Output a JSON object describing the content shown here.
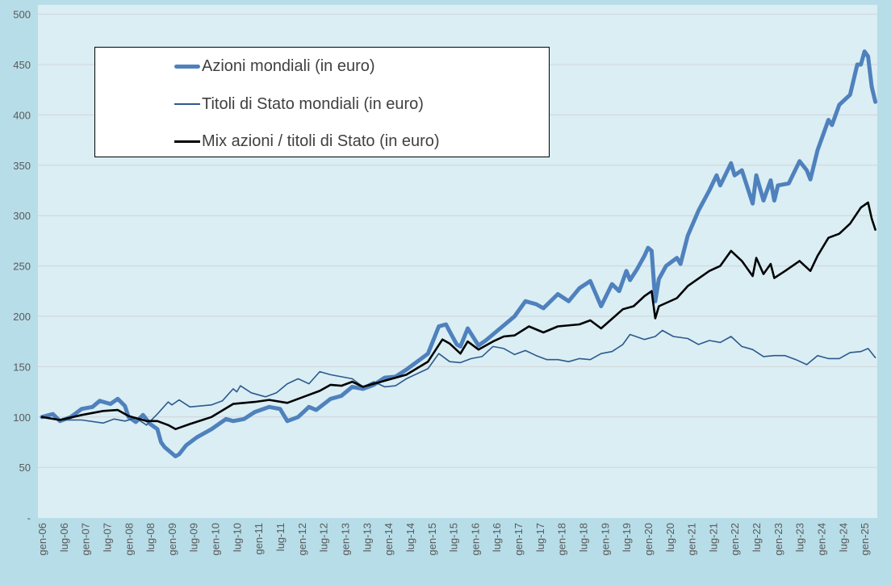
{
  "chart_data": {
    "type": "line",
    "title": "",
    "xlabel": "",
    "ylabel": "",
    "ylim": [
      0,
      500
    ],
    "yticks": [
      0,
      50,
      100,
      150,
      200,
      250,
      300,
      350,
      400,
      450,
      500
    ],
    "ytick_labels": [
      "-",
      "50",
      "100",
      "150",
      "200",
      "250",
      "300",
      "350",
      "400",
      "450",
      "500"
    ],
    "xtick_labels": [
      "gen-06",
      "lug-06",
      "gen-07",
      "lug-07",
      "gen-08",
      "lug-08",
      "gen-09",
      "lug-09",
      "gen-10",
      "lug-10",
      "gen-11",
      "lug-11",
      "gen-12",
      "lug-12",
      "gen-13",
      "lug-13",
      "gen-14",
      "lug-14",
      "gen-15",
      "lug-15",
      "gen-16",
      "lug-16",
      "gen-17",
      "lug-17",
      "gen-18",
      "lug-18",
      "gen-19",
      "lug-19",
      "gen-20",
      "lug-20",
      "gen-21",
      "lug-21",
      "gen-22",
      "lug-22",
      "gen-23",
      "lug-23",
      "gen-24",
      "lug-24",
      "gen-25"
    ],
    "xrange": [
      "2006-01",
      "2025-04"
    ],
    "grid": "horizontal",
    "legend_position": "top-left",
    "series": [
      {
        "name": "Azioni mondiali (in euro)",
        "color": "#4f81bd",
        "points": [
          [
            "2006-01",
            100
          ],
          [
            "2006-04",
            103
          ],
          [
            "2006-06",
            96
          ],
          [
            "2006-09",
            100
          ],
          [
            "2006-12",
            108
          ],
          [
            "2007-03",
            110
          ],
          [
            "2007-05",
            116
          ],
          [
            "2007-08",
            113
          ],
          [
            "2007-10",
            118
          ],
          [
            "2007-12",
            111
          ],
          [
            "2008-01",
            100
          ],
          [
            "2008-03",
            95
          ],
          [
            "2008-05",
            102
          ],
          [
            "2008-07",
            93
          ],
          [
            "2008-09",
            88
          ],
          [
            "2008-10",
            75
          ],
          [
            "2008-11",
            70
          ],
          [
            "2009-02",
            61
          ],
          [
            "2009-03",
            63
          ],
          [
            "2009-05",
            72
          ],
          [
            "2009-08",
            80
          ],
          [
            "2009-12",
            88
          ],
          [
            "2010-04",
            98
          ],
          [
            "2010-06",
            96
          ],
          [
            "2010-09",
            98
          ],
          [
            "2010-12",
            105
          ],
          [
            "2011-04",
            110
          ],
          [
            "2011-07",
            108
          ],
          [
            "2011-09",
            96
          ],
          [
            "2011-12",
            100
          ],
          [
            "2012-03",
            110
          ],
          [
            "2012-05",
            107
          ],
          [
            "2012-09",
            118
          ],
          [
            "2012-12",
            121
          ],
          [
            "2013-03",
            130
          ],
          [
            "2013-06",
            128
          ],
          [
            "2013-09",
            132
          ],
          [
            "2013-12",
            139
          ],
          [
            "2014-03",
            140
          ],
          [
            "2014-06",
            147
          ],
          [
            "2014-09",
            155
          ],
          [
            "2014-12",
            163
          ],
          [
            "2015-03",
            190
          ],
          [
            "2015-05",
            192
          ],
          [
            "2015-06",
            185
          ],
          [
            "2015-08",
            172
          ],
          [
            "2015-09",
            170
          ],
          [
            "2015-11",
            188
          ],
          [
            "2016-02",
            171
          ],
          [
            "2016-04",
            176
          ],
          [
            "2016-08",
            188
          ],
          [
            "2016-12",
            200
          ],
          [
            "2017-03",
            215
          ],
          [
            "2017-06",
            212
          ],
          [
            "2017-08",
            208
          ],
          [
            "2017-12",
            222
          ],
          [
            "2018-03",
            215
          ],
          [
            "2018-06",
            228
          ],
          [
            "2018-09",
            235
          ],
          [
            "2018-12",
            210
          ],
          [
            "2019-03",
            232
          ],
          [
            "2019-05",
            225
          ],
          [
            "2019-07",
            245
          ],
          [
            "2019-08",
            236
          ],
          [
            "2019-10",
            247
          ],
          [
            "2019-12",
            260
          ],
          [
            "2020-01",
            268
          ],
          [
            "2020-02",
            265
          ],
          [
            "2020-03",
            215
          ],
          [
            "2020-04",
            237
          ],
          [
            "2020-06",
            250
          ],
          [
            "2020-09",
            258
          ],
          [
            "2020-10",
            252
          ],
          [
            "2020-12",
            280
          ],
          [
            "2021-03",
            305
          ],
          [
            "2021-06",
            325
          ],
          [
            "2021-08",
            340
          ],
          [
            "2021-09",
            330
          ],
          [
            "2021-12",
            352
          ],
          [
            "2022-01",
            340
          ],
          [
            "2022-03",
            345
          ],
          [
            "2022-06",
            312
          ],
          [
            "2022-07",
            340
          ],
          [
            "2022-09",
            315
          ],
          [
            "2022-11",
            335
          ],
          [
            "2022-12",
            315
          ],
          [
            "2023-01",
            330
          ],
          [
            "2023-04",
            332
          ],
          [
            "2023-07",
            354
          ],
          [
            "2023-09",
            345
          ],
          [
            "2023-10",
            336
          ],
          [
            "2023-12",
            365
          ],
          [
            "2024-03",
            395
          ],
          [
            "2024-04",
            390
          ],
          [
            "2024-06",
            410
          ],
          [
            "2024-09",
            420
          ],
          [
            "2024-11",
            450
          ],
          [
            "2024-12",
            450
          ],
          [
            "2025-01",
            463
          ],
          [
            "2025-02",
            458
          ],
          [
            "2025-03",
            428
          ],
          [
            "2025-04",
            413
          ]
        ]
      },
      {
        "name": "Titoli di Stato mondiali (in euro)",
        "color": "#2c5a8c",
        "points": [
          [
            "2006-01",
            100
          ],
          [
            "2006-06",
            97
          ],
          [
            "2006-12",
            97
          ],
          [
            "2007-06",
            94
          ],
          [
            "2007-09",
            98
          ],
          [
            "2007-12",
            96
          ],
          [
            "2008-03",
            99
          ],
          [
            "2008-06",
            92
          ],
          [
            "2008-09",
            103
          ],
          [
            "2008-12",
            115
          ],
          [
            "2009-01",
            112
          ],
          [
            "2009-03",
            117
          ],
          [
            "2009-06",
            110
          ],
          [
            "2009-09",
            111
          ],
          [
            "2009-12",
            112
          ],
          [
            "2010-03",
            116
          ],
          [
            "2010-06",
            128
          ],
          [
            "2010-07",
            125
          ],
          [
            "2010-08",
            131
          ],
          [
            "2010-11",
            124
          ],
          [
            "2011-03",
            120
          ],
          [
            "2011-06",
            124
          ],
          [
            "2011-09",
            133
          ],
          [
            "2011-12",
            138
          ],
          [
            "2012-03",
            133
          ],
          [
            "2012-06",
            145
          ],
          [
            "2012-09",
            142
          ],
          [
            "2012-12",
            140
          ],
          [
            "2013-03",
            138
          ],
          [
            "2013-06",
            130
          ],
          [
            "2013-09",
            135
          ],
          [
            "2013-12",
            130
          ],
          [
            "2014-03",
            131
          ],
          [
            "2014-06",
            138
          ],
          [
            "2014-09",
            143
          ],
          [
            "2014-12",
            148
          ],
          [
            "2015-03",
            163
          ],
          [
            "2015-06",
            155
          ],
          [
            "2015-09",
            154
          ],
          [
            "2015-12",
            158
          ],
          [
            "2016-03",
            160
          ],
          [
            "2016-06",
            170
          ],
          [
            "2016-09",
            168
          ],
          [
            "2016-12",
            162
          ],
          [
            "2017-03",
            166
          ],
          [
            "2017-06",
            161
          ],
          [
            "2017-09",
            157
          ],
          [
            "2017-12",
            157
          ],
          [
            "2018-03",
            155
          ],
          [
            "2018-06",
            158
          ],
          [
            "2018-09",
            157
          ],
          [
            "2018-12",
            163
          ],
          [
            "2019-03",
            165
          ],
          [
            "2019-06",
            172
          ],
          [
            "2019-08",
            182
          ],
          [
            "2019-12",
            177
          ],
          [
            "2020-03",
            180
          ],
          [
            "2020-05",
            186
          ],
          [
            "2020-08",
            180
          ],
          [
            "2020-12",
            178
          ],
          [
            "2021-03",
            172
          ],
          [
            "2021-06",
            176
          ],
          [
            "2021-09",
            174
          ],
          [
            "2021-12",
            180
          ],
          [
            "2022-03",
            170
          ],
          [
            "2022-06",
            167
          ],
          [
            "2022-09",
            160
          ],
          [
            "2022-12",
            161
          ],
          [
            "2023-03",
            161
          ],
          [
            "2023-06",
            157
          ],
          [
            "2023-09",
            152
          ],
          [
            "2023-12",
            161
          ],
          [
            "2024-03",
            158
          ],
          [
            "2024-06",
            158
          ],
          [
            "2024-09",
            164
          ],
          [
            "2024-12",
            165
          ],
          [
            "2025-02",
            168
          ],
          [
            "2025-04",
            159
          ]
        ]
      },
      {
        "name": "Mix azioni / titoli di Stato (in euro)",
        "color": "#000000",
        "points": [
          [
            "2006-01",
            100
          ],
          [
            "2006-06",
            97
          ],
          [
            "2006-12",
            102
          ],
          [
            "2007-06",
            106
          ],
          [
            "2007-10",
            107
          ],
          [
            "2008-01",
            101
          ],
          [
            "2008-06",
            96
          ],
          [
            "2008-09",
            96
          ],
          [
            "2008-12",
            92
          ],
          [
            "2009-02",
            88
          ],
          [
            "2009-06",
            93
          ],
          [
            "2009-12",
            100
          ],
          [
            "2010-06",
            113
          ],
          [
            "2010-12",
            115
          ],
          [
            "2011-04",
            117
          ],
          [
            "2011-09",
            114
          ],
          [
            "2011-12",
            118
          ],
          [
            "2012-06",
            126
          ],
          [
            "2012-09",
            132
          ],
          [
            "2012-12",
            131
          ],
          [
            "2013-03",
            135
          ],
          [
            "2013-06",
            130
          ],
          [
            "2013-12",
            136
          ],
          [
            "2014-06",
            142
          ],
          [
            "2014-12",
            155
          ],
          [
            "2015-04",
            177
          ],
          [
            "2015-06",
            173
          ],
          [
            "2015-09",
            163
          ],
          [
            "2015-11",
            175
          ],
          [
            "2016-02",
            167
          ],
          [
            "2016-06",
            175
          ],
          [
            "2016-09",
            180
          ],
          [
            "2016-12",
            181
          ],
          [
            "2017-04",
            190
          ],
          [
            "2017-08",
            184
          ],
          [
            "2017-12",
            190
          ],
          [
            "2018-06",
            192
          ],
          [
            "2018-09",
            196
          ],
          [
            "2018-12",
            188
          ],
          [
            "2019-06",
            207
          ],
          [
            "2019-09",
            210
          ],
          [
            "2019-12",
            220
          ],
          [
            "2020-02",
            225
          ],
          [
            "2020-03",
            198
          ],
          [
            "2020-04",
            210
          ],
          [
            "2020-09",
            218
          ],
          [
            "2020-12",
            230
          ],
          [
            "2021-06",
            245
          ],
          [
            "2021-09",
            250
          ],
          [
            "2021-12",
            265
          ],
          [
            "2022-03",
            255
          ],
          [
            "2022-06",
            240
          ],
          [
            "2022-07",
            258
          ],
          [
            "2022-09",
            242
          ],
          [
            "2022-11",
            252
          ],
          [
            "2022-12",
            238
          ],
          [
            "2023-03",
            245
          ],
          [
            "2023-07",
            255
          ],
          [
            "2023-10",
            245
          ],
          [
            "2023-12",
            260
          ],
          [
            "2024-03",
            278
          ],
          [
            "2024-06",
            282
          ],
          [
            "2024-09",
            292
          ],
          [
            "2024-12",
            308
          ],
          [
            "2025-02",
            313
          ],
          [
            "2025-03",
            297
          ],
          [
            "2025-04",
            286
          ]
        ]
      }
    ]
  }
}
